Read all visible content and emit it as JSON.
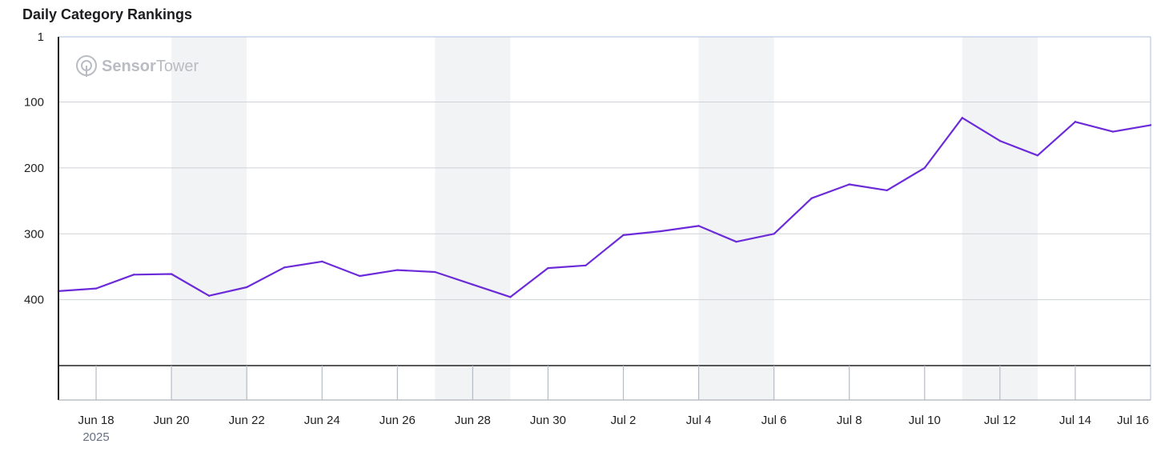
{
  "title": "Daily Category Rankings",
  "watermark": {
    "bold": "Sensor",
    "light": "Tower"
  },
  "colors": {
    "line": "#6c2bd9",
    "weekend_band": "#f2f3f5",
    "grid": "#cfd2d6",
    "axis": "#222222"
  },
  "chart_data": {
    "type": "line",
    "title": "Daily Category Rankings",
    "xlabel": "",
    "ylabel": "",
    "y_inverted": true,
    "ylim": [
      1,
      500
    ],
    "y_ticks": [
      1,
      100,
      200,
      300,
      400
    ],
    "x_range": [
      "2025-06-17",
      "2025-07-16"
    ],
    "x_ticks": [
      {
        "date": "2025-06-18",
        "label": "Jun 18",
        "sublabel": "2025"
      },
      {
        "date": "2025-06-20",
        "label": "Jun 20"
      },
      {
        "date": "2025-06-22",
        "label": "Jun 22"
      },
      {
        "date": "2025-06-24",
        "label": "Jun 24"
      },
      {
        "date": "2025-06-26",
        "label": "Jun 26"
      },
      {
        "date": "2025-06-28",
        "label": "Jun 28"
      },
      {
        "date": "2025-06-30",
        "label": "Jun 30"
      },
      {
        "date": "2025-07-02",
        "label": "Jul 2"
      },
      {
        "date": "2025-07-04",
        "label": "Jul 4"
      },
      {
        "date": "2025-07-06",
        "label": "Jul 6"
      },
      {
        "date": "2025-07-08",
        "label": "Jul 8"
      },
      {
        "date": "2025-07-10",
        "label": "Jul 10"
      },
      {
        "date": "2025-07-12",
        "label": "Jul 12"
      },
      {
        "date": "2025-07-14",
        "label": "Jul 14"
      },
      {
        "date": "2025-07-16",
        "label": "Jul 16"
      }
    ],
    "weekend_bands": [
      [
        "2025-06-20",
        "2025-06-22"
      ],
      [
        "2025-06-27",
        "2025-06-29"
      ],
      [
        "2025-07-04",
        "2025-07-06"
      ],
      [
        "2025-07-11",
        "2025-07-13"
      ]
    ],
    "grid": true,
    "series": [
      {
        "values": [
          {
            "x": "2025-06-17",
            "y": 387
          },
          {
            "x": "2025-06-18",
            "y": 383
          },
          {
            "x": "2025-06-19",
            "y": 362
          },
          {
            "x": "2025-06-20",
            "y": 361
          },
          {
            "x": "2025-06-21",
            "y": 394
          },
          {
            "x": "2025-06-22",
            "y": 381
          },
          {
            "x": "2025-06-23",
            "y": 351
          },
          {
            "x": "2025-06-24",
            "y": 342
          },
          {
            "x": "2025-06-25",
            "y": 364
          },
          {
            "x": "2025-06-26",
            "y": 355
          },
          {
            "x": "2025-06-27",
            "y": 358
          },
          {
            "x": "2025-06-28",
            "y": 377
          },
          {
            "x": "2025-06-29",
            "y": 396
          },
          {
            "x": "2025-06-30",
            "y": 352
          },
          {
            "x": "2025-07-01",
            "y": 348
          },
          {
            "x": "2025-07-02",
            "y": 302
          },
          {
            "x": "2025-07-03",
            "y": 296
          },
          {
            "x": "2025-07-04",
            "y": 288
          },
          {
            "x": "2025-07-05",
            "y": 312
          },
          {
            "x": "2025-07-06",
            "y": 300
          },
          {
            "x": "2025-07-07",
            "y": 246
          },
          {
            "x": "2025-07-08",
            "y": 225
          },
          {
            "x": "2025-07-09",
            "y": 234
          },
          {
            "x": "2025-07-10",
            "y": 200
          },
          {
            "x": "2025-07-11",
            "y": 124
          },
          {
            "x": "2025-07-12",
            "y": 159
          },
          {
            "x": "2025-07-13",
            "y": 181
          },
          {
            "x": "2025-07-14",
            "y": 130
          },
          {
            "x": "2025-07-15",
            "y": 145
          },
          {
            "x": "2025-07-16",
            "y": 135
          }
        ]
      }
    ]
  }
}
